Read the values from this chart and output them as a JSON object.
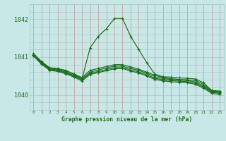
{
  "bg_color": "#c8e8e8",
  "grid_color_v": "#d09090",
  "grid_color_h": "#a8c8c8",
  "line_color": "#1a6b1a",
  "text_color": "#1a6b1a",
  "xlabel": "Graphe pression niveau de la mer (hPa)",
  "ylim": [
    1039.6,
    1042.4
  ],
  "xlim": [
    -0.5,
    23.5
  ],
  "yticks": [
    1040,
    1041,
    1042
  ],
  "xtick_labels": [
    "0",
    "1",
    "2",
    "3",
    "4",
    "5",
    "6",
    "7",
    "8",
    "9",
    "10",
    "11",
    "12",
    "13",
    "14",
    "15",
    "16",
    "17",
    "18",
    "19",
    "20",
    "21",
    "22",
    "23"
  ],
  "series": [
    [
      1041.1,
      1040.88,
      1040.72,
      1040.7,
      1040.65,
      1040.55,
      1040.42,
      1041.25,
      1041.55,
      1041.75,
      1042.02,
      1042.02,
      1041.55,
      1041.2,
      1040.85,
      1040.55,
      1040.48,
      1040.47,
      1040.45,
      1040.44,
      1040.42,
      1040.32,
      1040.12,
      1040.1
    ],
    [
      1041.05,
      1040.87,
      1040.71,
      1040.68,
      1040.63,
      1040.55,
      1040.46,
      1040.65,
      1040.7,
      1040.75,
      1040.8,
      1040.8,
      1040.74,
      1040.68,
      1040.6,
      1040.52,
      1040.46,
      1040.43,
      1040.41,
      1040.4,
      1040.38,
      1040.28,
      1040.11,
      1040.08
    ],
    [
      1041.05,
      1040.85,
      1040.69,
      1040.66,
      1040.6,
      1040.52,
      1040.43,
      1040.6,
      1040.66,
      1040.71,
      1040.76,
      1040.76,
      1040.7,
      1040.65,
      1040.57,
      1040.48,
      1040.43,
      1040.41,
      1040.39,
      1040.38,
      1040.34,
      1040.24,
      1040.09,
      1040.06
    ],
    [
      1041.05,
      1040.83,
      1040.67,
      1040.64,
      1040.58,
      1040.5,
      1040.4,
      1040.57,
      1040.62,
      1040.67,
      1040.72,
      1040.72,
      1040.66,
      1040.61,
      1040.53,
      1040.44,
      1040.4,
      1040.38,
      1040.36,
      1040.35,
      1040.31,
      1040.21,
      1040.07,
      1040.04
    ],
    [
      1041.03,
      1040.81,
      1040.65,
      1040.62,
      1040.56,
      1040.47,
      1040.37,
      1040.54,
      1040.59,
      1040.64,
      1040.69,
      1040.7,
      1040.63,
      1040.58,
      1040.5,
      1040.41,
      1040.37,
      1040.35,
      1040.33,
      1040.32,
      1040.28,
      1040.18,
      1040.04,
      1040.01
    ]
  ]
}
